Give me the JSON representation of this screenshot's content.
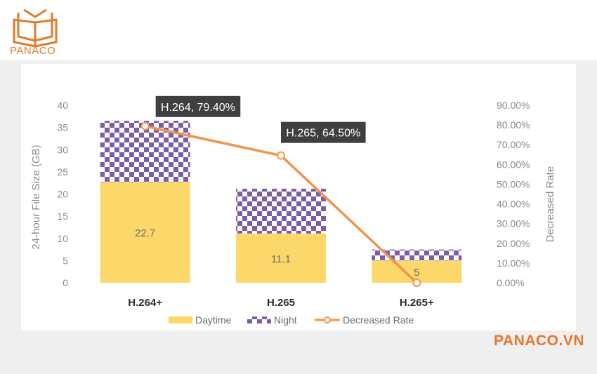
{
  "brand": {
    "logo_text": "PANACO",
    "watermark": "PANACO.VN",
    "accent": "#e8762d"
  },
  "chart_data": {
    "type": "bar",
    "stacked": true,
    "categories": [
      "H.264+",
      "H.265",
      "H.265+"
    ],
    "series": [
      {
        "name": "Daytime",
        "values": [
          22.7,
          11.1,
          5
        ],
        "color": "#fcd86a",
        "labels": [
          "22.7",
          "11.1",
          "5"
        ]
      },
      {
        "name": "Night",
        "values": [
          13.8,
          10.1,
          2.5
        ],
        "color": "#7b5ea7"
      }
    ],
    "line_series": {
      "name": "Decreased Rate",
      "values": [
        79.4,
        64.5,
        0
      ],
      "color": "#f0954a",
      "axis": "right"
    },
    "callouts": [
      "H.264, 79.40%",
      "H.265, 64.50%"
    ],
    "ylabel": "24-hour File Size (GB)",
    "y2label": "Decreased Rate",
    "ylim": [
      0,
      40
    ],
    "y2lim": [
      0,
      90
    ],
    "yticks": [
      "0",
      "5",
      "10",
      "15",
      "20",
      "25",
      "30",
      "35",
      "40"
    ],
    "y2ticks": [
      "0.00%",
      "10.00%",
      "20.00%",
      "30.00%",
      "40.00%",
      "50.00%",
      "60.00%",
      "70.00%",
      "80.00%",
      "90.00%"
    ],
    "legend": "bottom",
    "grid": false
  }
}
